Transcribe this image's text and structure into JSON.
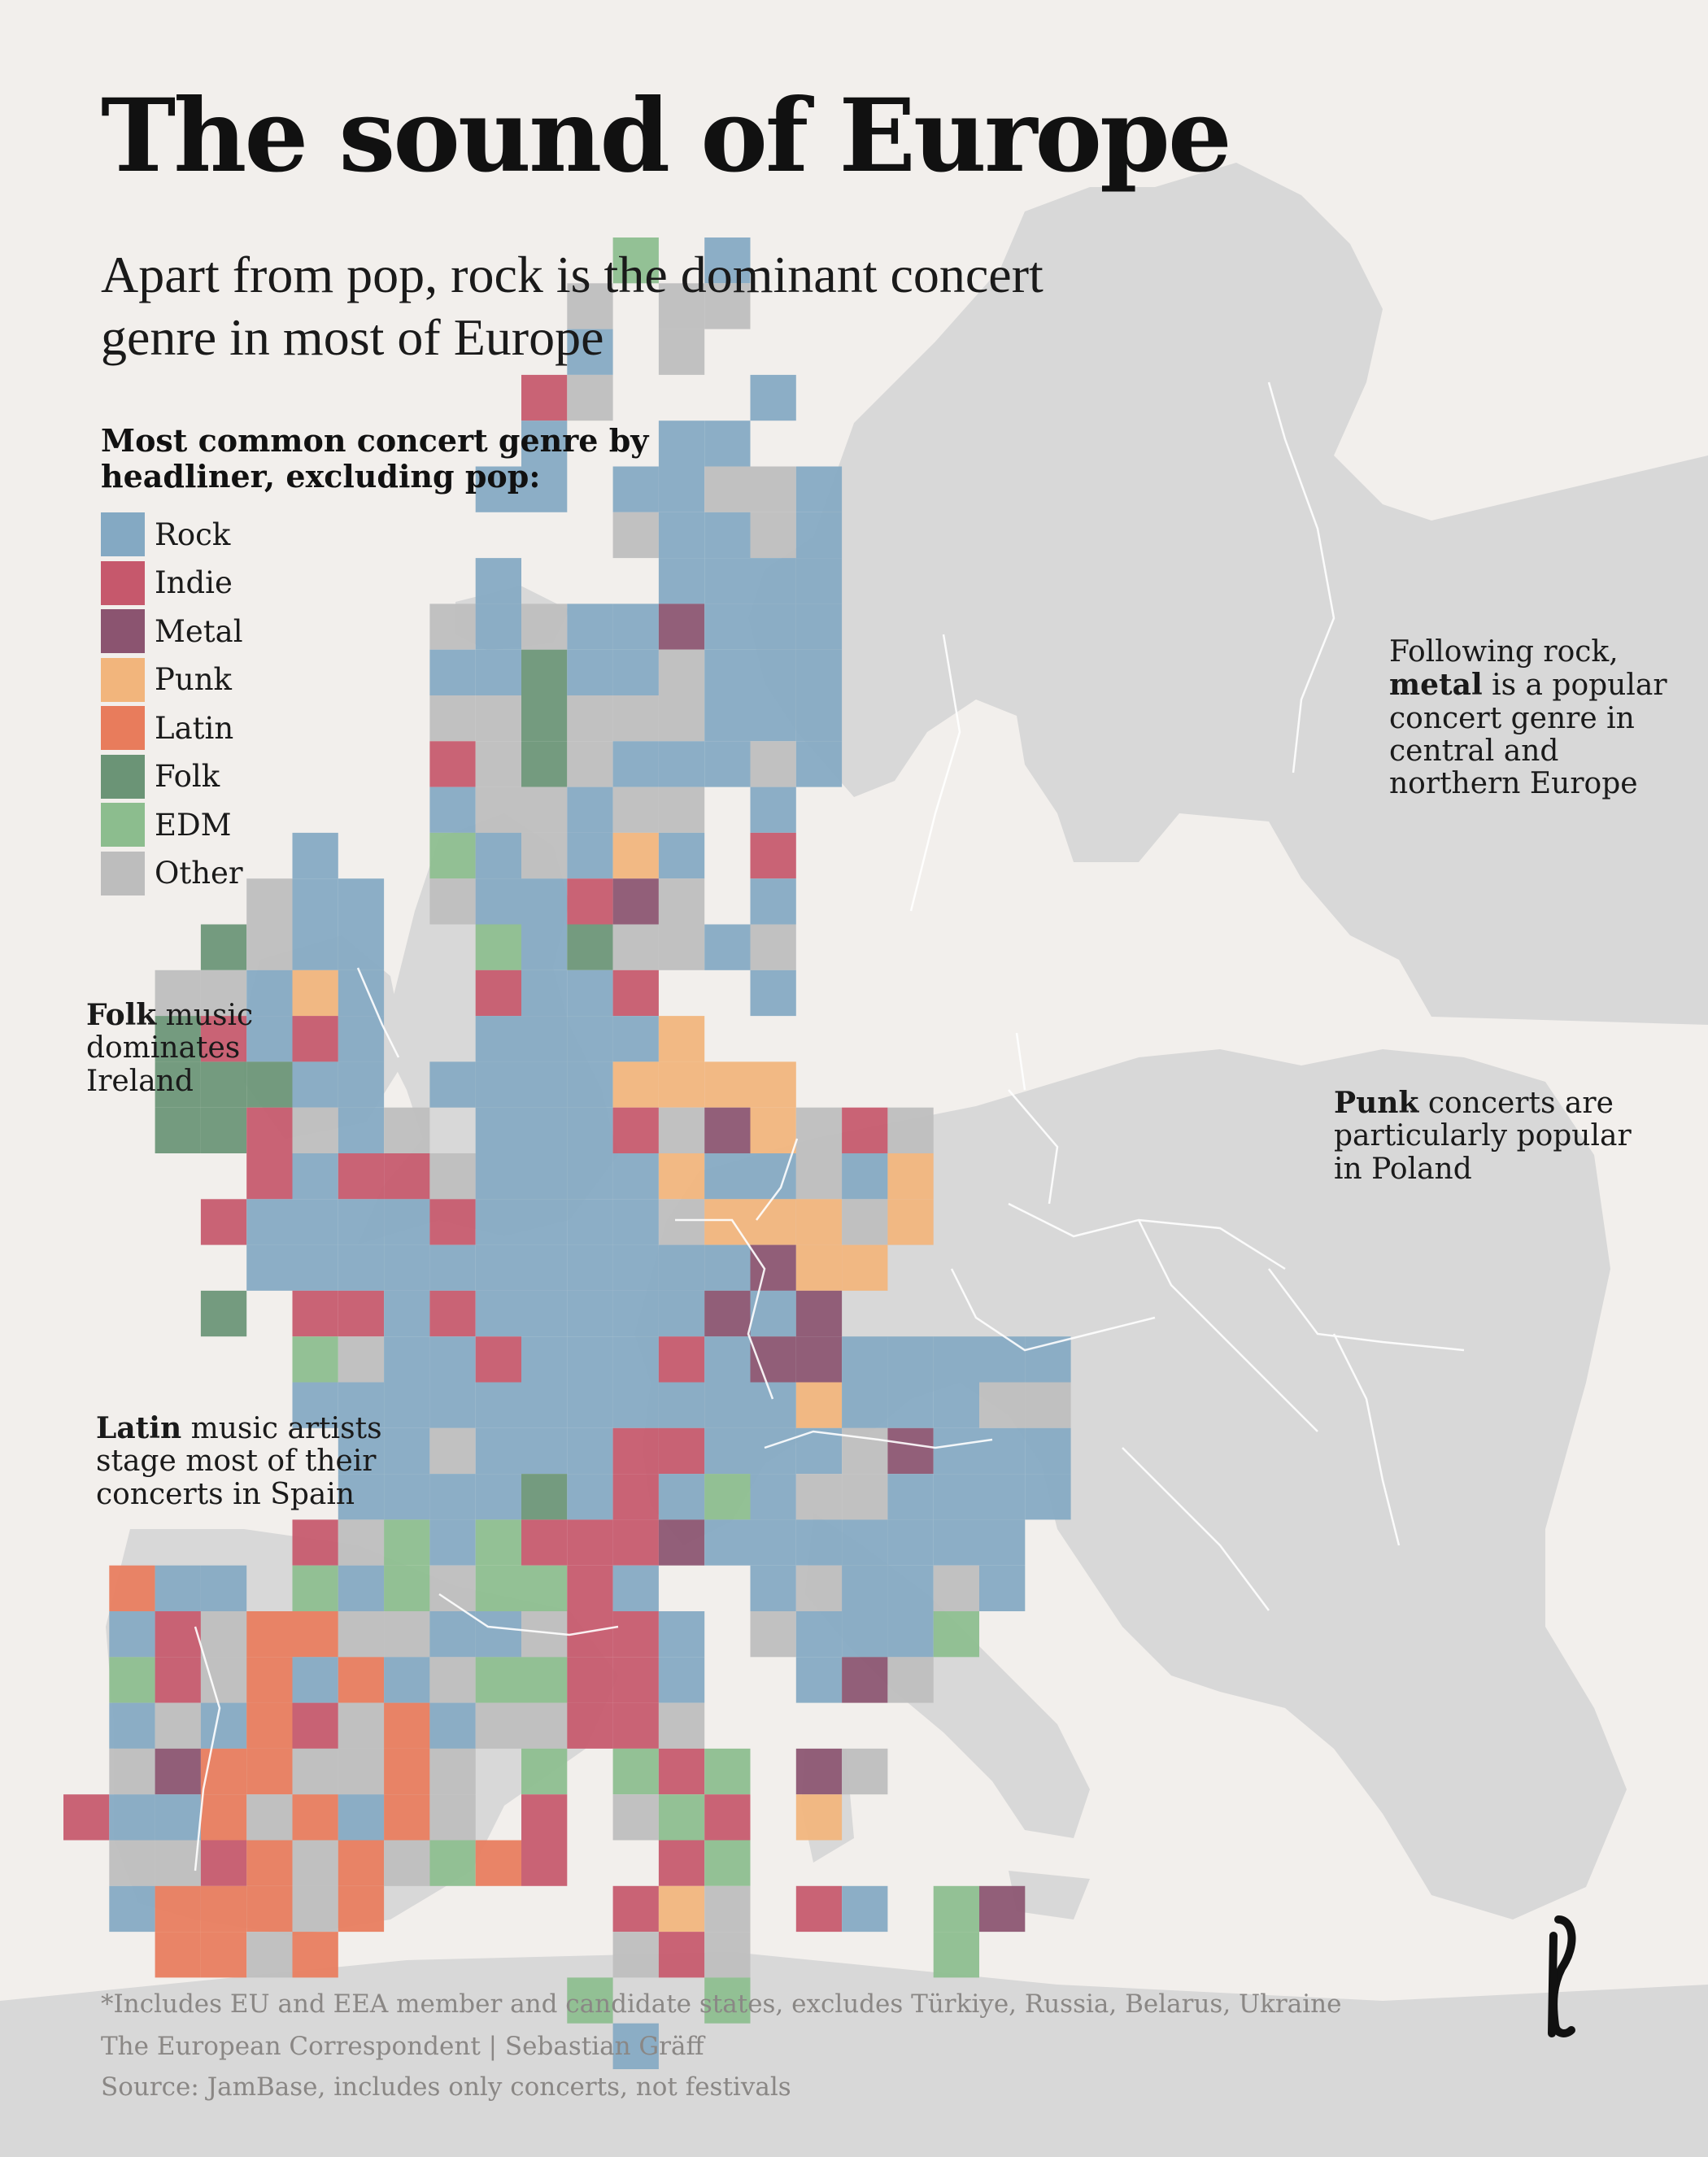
{
  "title": "The sound of Europe",
  "subtitle": "Apart from pop, rock is the dominant concert genre in most of Europe",
  "legend": {
    "title": "Most common concert genre by headliner, excluding pop:",
    "items": [
      {
        "key": "rock",
        "label": "Rock",
        "color": "#84a9c3"
      },
      {
        "key": "indie",
        "label": "Indie",
        "color": "#c6586c"
      },
      {
        "key": "metal",
        "label": "Metal",
        "color": "#8b5470"
      },
      {
        "key": "punk",
        "label": "Punk",
        "color": "#f2b57c"
      },
      {
        "key": "latin",
        "label": "Latin",
        "color": "#e87c5c"
      },
      {
        "key": "folk",
        "label": "Folk",
        "color": "#6b9476"
      },
      {
        "key": "edm",
        "label": "EDM",
        "color": "#8cbd8e"
      },
      {
        "key": "other",
        "label": "Other",
        "color": "#bdbdbd"
      }
    ]
  },
  "annotations": {
    "metal": {
      "pre": "Following rock,",
      "bold": "metal",
      "post": " is a popular concert genre in central and northern Europe"
    },
    "folk": {
      "pre": "",
      "bold": "Folk",
      "post": " music dominates Ireland"
    },
    "punk": {
      "pre": "",
      "bold": "Punk",
      "post": " concerts are particularly popular in Poland"
    },
    "latin": {
      "pre": "",
      "bold": "Latin",
      "post": " music artists stage most of their concerts in Spain"
    }
  },
  "footer": {
    "note": "*Includes EU and EEA member and candidate states, excludes Türkiye, Russia, Belarus, Ukraine",
    "credit": "The European Correspondent | Sebastian Gräff",
    "source": "Source: JamBase, includes only concerts, not festivals"
  },
  "colors": {
    "background": "#f2efec",
    "land": "#d8d8d8",
    "border": "#ffffff",
    "footer_text": "#8a8785"
  },
  "logo": "european-correspondent-logo"
}
